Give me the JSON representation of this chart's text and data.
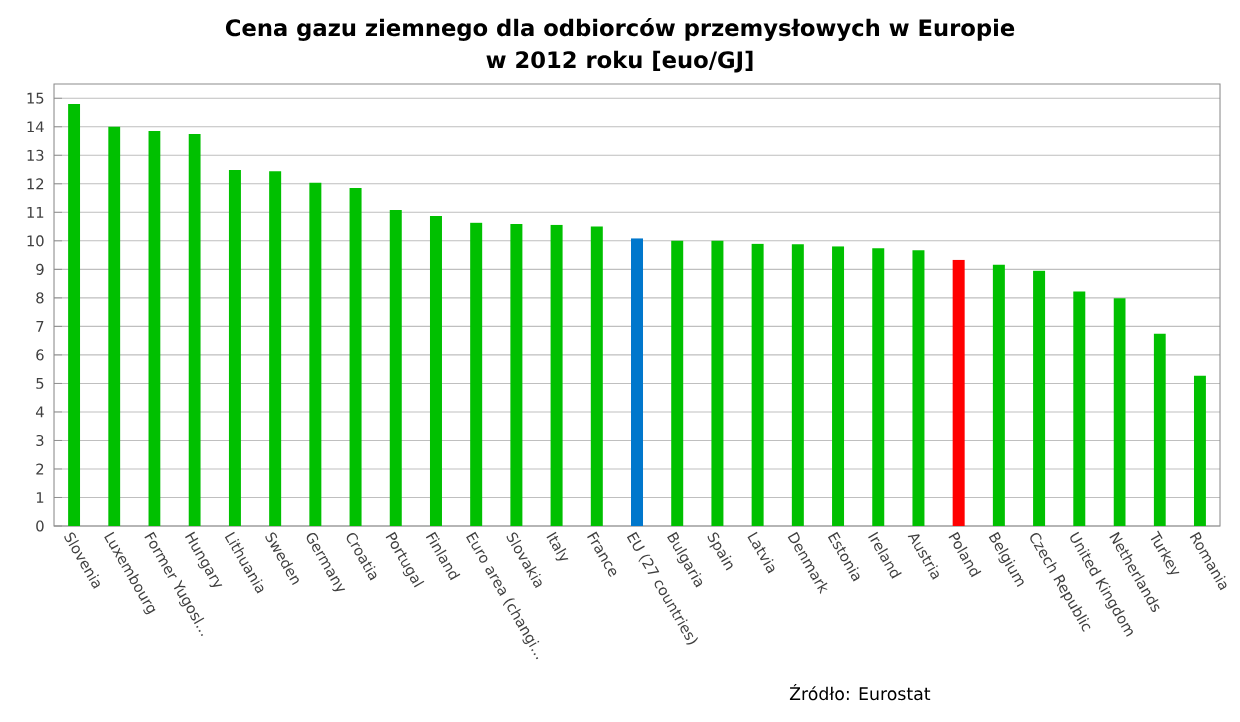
{
  "chart_data": {
    "type": "bar",
    "title": "Cena gazu ziemnego dla odbiorców przemysłowych w Europie",
    "subtitle": "w 2012 roku [euo/GJ]",
    "categories": [
      "Slovenia",
      "Luxembourg",
      "Former Yugosl...",
      "Hungary",
      "Lithuania",
      "Sweden",
      "Germany",
      "Croatia",
      "Portugal",
      "Finland",
      "Euro area (changi...",
      "Slovakia",
      "Italy",
      "France",
      "EU (27 countries)",
      "Bulgaria",
      "Spain",
      "Latvia",
      "Denmark",
      "Estonia",
      "Ireland",
      "Austria",
      "Poland",
      "Belgium",
      "Czech Republic",
      "United Kingdom",
      "Netherlands",
      "Turkey",
      "Romania"
    ],
    "values": [
      14.8,
      14.0,
      13.85,
      13.75,
      12.48,
      12.44,
      12.04,
      11.85,
      11.08,
      10.87,
      10.63,
      10.59,
      10.56,
      10.5,
      10.09,
      10.0,
      10.0,
      9.9,
      9.88,
      9.81,
      9.74,
      9.67,
      9.34,
      9.16,
      8.95,
      8.22,
      7.99,
      6.74,
      5.27
    ],
    "colors": [
      "#00c000",
      "#00c000",
      "#00c000",
      "#00c000",
      "#00c000",
      "#00c000",
      "#00c000",
      "#00c000",
      "#00c000",
      "#00c000",
      "#00c000",
      "#00c000",
      "#00c000",
      "#00c000",
      "#0077cc",
      "#00c000",
      "#00c000",
      "#00c000",
      "#00c000",
      "#00c000",
      "#00c000",
      "#00c000",
      "#ff0000",
      "#00c000",
      "#00c000",
      "#00c000",
      "#00c000",
      "#00c000",
      "#00c000"
    ],
    "ylim": [
      0,
      15.5
    ],
    "yticks": [
      0,
      1,
      2,
      3,
      4,
      5,
      6,
      7,
      8,
      9,
      10,
      11,
      12,
      13,
      14,
      15
    ],
    "grid": "y",
    "annotations": [
      "Źródło: Eurostat"
    ]
  }
}
